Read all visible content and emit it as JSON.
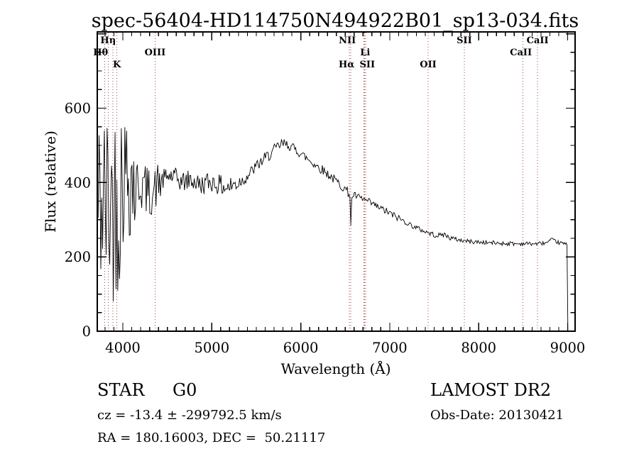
{
  "title": "spec-56404-HD114750N494922B01_sp13-034.fits",
  "footer": {
    "class": "STAR",
    "subclass": "G0",
    "survey": "LAMOST DR2",
    "cz": "cz = -13.4 ± -299792.5 km/s",
    "obs": "Obs-Date: 20130421",
    "radec": "RA = 180.16003, DEC =  50.21117"
  },
  "chart_data": {
    "type": "line",
    "title": "spec-56404-HD114750N494922B01_sp13-034.fits",
    "xlabel": "Wavelength (Å)",
    "ylabel": "Flux (relative)",
    "xlim": [
      3713,
      9084
    ],
    "ylim": [
      0,
      805
    ],
    "x_major_ticks": [
      4000,
      5000,
      6000,
      7000,
      8000,
      9000
    ],
    "x_minor_step": 100,
    "y_major_ticks": [
      0,
      200,
      400,
      600
    ],
    "y_minor_step": 50,
    "grid": false,
    "line_color": "#000000",
    "marker_line_color": "#a04545",
    "seed": 42,
    "spectral_lines": [
      {
        "wl": 3798,
        "label": "Hθ",
        "row": 2,
        "dx": -6
      },
      {
        "wl": 3835,
        "label": "Hη",
        "row": 1
      },
      {
        "wl": 3889
      },
      {
        "wl": 3933,
        "label": "K",
        "row": 3
      },
      {
        "wl": 4363,
        "label": "OIII",
        "row": 2
      },
      {
        "wl": 6548,
        "label": "NII",
        "row": 1,
        "dx": -3
      },
      {
        "wl": 6563,
        "label": "Hα",
        "row": 3,
        "dx": -6
      },
      {
        "wl": 6708,
        "label": "Li",
        "row": 2,
        "dx": 2
      },
      {
        "wl": 6717
      },
      {
        "wl": 6731
      },
      {
        "wl": 6724,
        "label": "SII",
        "row": 3,
        "line": false,
        "dx": 3
      },
      {
        "wl": 7432,
        "label": "OII",
        "row": 3
      },
      {
        "wl": 7838,
        "label": "SII",
        "row": 1
      },
      {
        "wl": 8498,
        "label": "CaII",
        "row": 2,
        "dx": -3
      },
      {
        "wl": 8662,
        "label": "CaII",
        "row": 1
      }
    ],
    "envelope": [
      [
        3713,
        330
      ],
      [
        3760,
        345
      ],
      [
        3820,
        340
      ],
      [
        3880,
        345
      ],
      [
        3940,
        360
      ],
      [
        3980,
        390
      ],
      [
        4020,
        425
      ],
      [
        4060,
        430
      ],
      [
        4120,
        405
      ],
      [
        4180,
        395
      ],
      [
        4240,
        388
      ],
      [
        4300,
        368
      ],
      [
        4350,
        378
      ],
      [
        4400,
        398
      ],
      [
        4460,
        408
      ],
      [
        4520,
        418
      ],
      [
        4580,
        414
      ],
      [
        4640,
        404
      ],
      [
        4700,
        402
      ],
      [
        4760,
        408
      ],
      [
        4820,
        400
      ],
      [
        4880,
        392
      ],
      [
        4940,
        400
      ],
      [
        5000,
        402
      ],
      [
        5060,
        396
      ],
      [
        5120,
        390
      ],
      [
        5180,
        386
      ],
      [
        5240,
        393
      ],
      [
        5300,
        400
      ],
      [
        5360,
        408
      ],
      [
        5420,
        422
      ],
      [
        5480,
        438
      ],
      [
        5540,
        452
      ],
      [
        5600,
        465
      ],
      [
        5660,
        478
      ],
      [
        5720,
        490
      ],
      [
        5780,
        502
      ],
      [
        5820,
        505
      ],
      [
        5880,
        498
      ],
      [
        5940,
        489
      ],
      [
        6000,
        478
      ],
      [
        6080,
        463
      ],
      [
        6160,
        448
      ],
      [
        6240,
        435
      ],
      [
        6320,
        420
      ],
      [
        6400,
        403
      ],
      [
        6480,
        387
      ],
      [
        6540,
        372
      ],
      [
        6556,
        360
      ],
      [
        6563,
        287
      ],
      [
        6572,
        352
      ],
      [
        6590,
        366
      ],
      [
        6650,
        360
      ],
      [
        6710,
        354
      ],
      [
        6770,
        347
      ],
      [
        6830,
        339
      ],
      [
        6890,
        331
      ],
      [
        6950,
        324
      ],
      [
        7010,
        316
      ],
      [
        7070,
        308
      ],
      [
        7130,
        300
      ],
      [
        7190,
        292
      ],
      [
        7250,
        284
      ],
      [
        7310,
        277
      ],
      [
        7370,
        271
      ],
      [
        7430,
        265
      ],
      [
        7490,
        260
      ],
      [
        7550,
        257
      ],
      [
        7610,
        261
      ],
      [
        7670,
        252
      ],
      [
        7730,
        248
      ],
      [
        7790,
        245
      ],
      [
        7850,
        243
      ],
      [
        7910,
        241
      ],
      [
        7970,
        240
      ],
      [
        8050,
        239
      ],
      [
        8130,
        238
      ],
      [
        8210,
        237
      ],
      [
        8290,
        236
      ],
      [
        8370,
        236
      ],
      [
        8450,
        235
      ],
      [
        8530,
        236
      ],
      [
        8610,
        235
      ],
      [
        8690,
        236
      ],
      [
        8770,
        238
      ],
      [
        8820,
        246
      ],
      [
        8850,
        243
      ],
      [
        8900,
        238
      ],
      [
        8950,
        236
      ],
      [
        8990,
        233
      ],
      [
        8996,
        228
      ],
      [
        8999,
        60
      ],
      [
        9002,
        2
      ],
      [
        9006,
        1
      ]
    ],
    "noise_profile": [
      [
        3713,
        3990,
        270
      ],
      [
        3990,
        4150,
        180
      ],
      [
        4150,
        4320,
        70
      ],
      [
        4320,
        4440,
        60
      ],
      [
        4440,
        5320,
        28
      ],
      [
        5320,
        5810,
        17
      ],
      [
        5810,
        6540,
        13
      ],
      [
        6540,
        6600,
        6
      ],
      [
        6600,
        7150,
        10
      ],
      [
        7150,
        7700,
        7
      ],
      [
        7700,
        8450,
        6
      ],
      [
        8450,
        8997,
        5
      ],
      [
        8997,
        9006,
        1
      ]
    ]
  }
}
